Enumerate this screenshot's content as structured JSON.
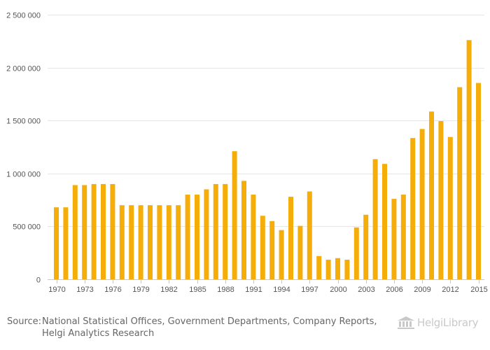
{
  "chart_data": {
    "type": "bar",
    "title": "",
    "xlabel": "",
    "ylabel": "",
    "ylim": [
      0,
      2500000
    ],
    "y_ticks": [
      0,
      500000,
      1000000,
      1500000,
      2000000,
      2500000
    ],
    "y_tick_labels": [
      "0",
      "500 000",
      "1 000 000",
      "1 500 000",
      "2 000 000",
      "2 500 000"
    ],
    "x_tick_labels": [
      "1970",
      "1973",
      "1976",
      "1979",
      "1982",
      "1985",
      "1988",
      "1991",
      "1994",
      "1997",
      "2000",
      "2003",
      "2006",
      "2009",
      "2012",
      "2015"
    ],
    "grid": true,
    "bar_color": "#f5ad0a",
    "categories": [
      1970,
      1971,
      1972,
      1973,
      1974,
      1975,
      1976,
      1977,
      1978,
      1979,
      1980,
      1981,
      1982,
      1983,
      1984,
      1985,
      1986,
      1987,
      1988,
      1989,
      1990,
      1991,
      1992,
      1993,
      1994,
      1995,
      1996,
      1997,
      1998,
      1999,
      2000,
      2001,
      2002,
      2003,
      2004,
      2005,
      2006,
      2007,
      2008,
      2009,
      2010,
      2011,
      2012,
      2013,
      2014,
      2015
    ],
    "values": [
      680000,
      680000,
      890000,
      890000,
      900000,
      900000,
      900000,
      700000,
      700000,
      700000,
      700000,
      700000,
      700000,
      700000,
      800000,
      800000,
      850000,
      900000,
      900000,
      1210000,
      930000,
      800000,
      600000,
      550000,
      465000,
      780000,
      505000,
      830000,
      220000,
      185000,
      200000,
      185000,
      490000,
      610000,
      1135000,
      1090000,
      760000,
      800000,
      1335000,
      1420000,
      1585000,
      1495000,
      1345000,
      1815000,
      2260000,
      1855000
    ]
  },
  "footer": {
    "source_prefix": "Source:",
    "source_line1": "National Statistical Offices, Government Departments, Company Reports,",
    "source_line2": "Helgi Analytics Research"
  },
  "brand": {
    "name": "HelgiLibrary",
    "icon": "library-columns-icon",
    "color": "#c9c9c9"
  }
}
